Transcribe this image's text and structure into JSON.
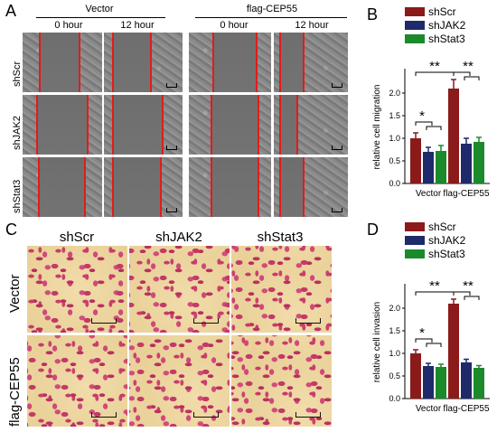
{
  "panels": {
    "A": {
      "letter": "A",
      "groups": [
        {
          "label": "Vector",
          "timepoints": [
            "0 hour",
            "12 hour"
          ]
        },
        {
          "label": "flag-CEP55",
          "timepoints": [
            "0 hour",
            "12 hour"
          ]
        }
      ],
      "rows": [
        "shScr",
        "shJAK2",
        "shStat3"
      ]
    },
    "C": {
      "letter": "C",
      "columns": [
        "shScr",
        "shJAK2",
        "shStat3"
      ],
      "rows": [
        "Vector",
        "flag-CEP55"
      ]
    }
  },
  "colors": {
    "shScr": "#8b1a1a",
    "shJAK2": "#1f2a6b",
    "shStat3": "#1a8a2a",
    "scratch_line": "#e31b1b"
  },
  "chart_data": [
    {
      "letter": "B",
      "type": "bar",
      "categories": [
        "Vector",
        "flag-CEP55"
      ],
      "series": [
        {
          "name": "shScr",
          "values": [
            1.0,
            2.1
          ],
          "errors": [
            0.12,
            0.2
          ]
        },
        {
          "name": "shJAK2",
          "values": [
            0.7,
            0.88
          ],
          "errors": [
            0.1,
            0.12
          ]
        },
        {
          "name": "shStat3",
          "values": [
            0.72,
            0.92
          ],
          "errors": [
            0.12,
            0.1
          ]
        }
      ],
      "ylabel": "relative cell migration",
      "ylim": [
        0,
        2.5
      ],
      "yticks": [
        "0.0",
        "0.5",
        "1.0",
        "1.5",
        "2.0"
      ],
      "legend": "top-right",
      "annotations": {
        "vector_sig": "*",
        "cep55_sig_left": "**",
        "cep55_sig_right": "**"
      }
    },
    {
      "letter": "D",
      "type": "bar",
      "categories": [
        "Vector",
        "flag-CEP55"
      ],
      "series": [
        {
          "name": "shScr",
          "values": [
            1.0,
            2.1
          ],
          "errors": [
            0.08,
            0.1
          ]
        },
        {
          "name": "shJAK2",
          "values": [
            0.72,
            0.8
          ],
          "errors": [
            0.06,
            0.07
          ]
        },
        {
          "name": "shStat3",
          "values": [
            0.7,
            0.68
          ],
          "errors": [
            0.06,
            0.05
          ]
        }
      ],
      "ylabel": "relative cell invasion",
      "ylim": [
        0,
        2.5
      ],
      "yticks": [
        "0.0",
        "0.5",
        "1.0",
        "1.5",
        "2.0"
      ],
      "legend": "top-right",
      "annotations": {
        "vector_sig": "*",
        "cep55_sig_left": "**",
        "cep55_sig_right": "**"
      }
    }
  ]
}
